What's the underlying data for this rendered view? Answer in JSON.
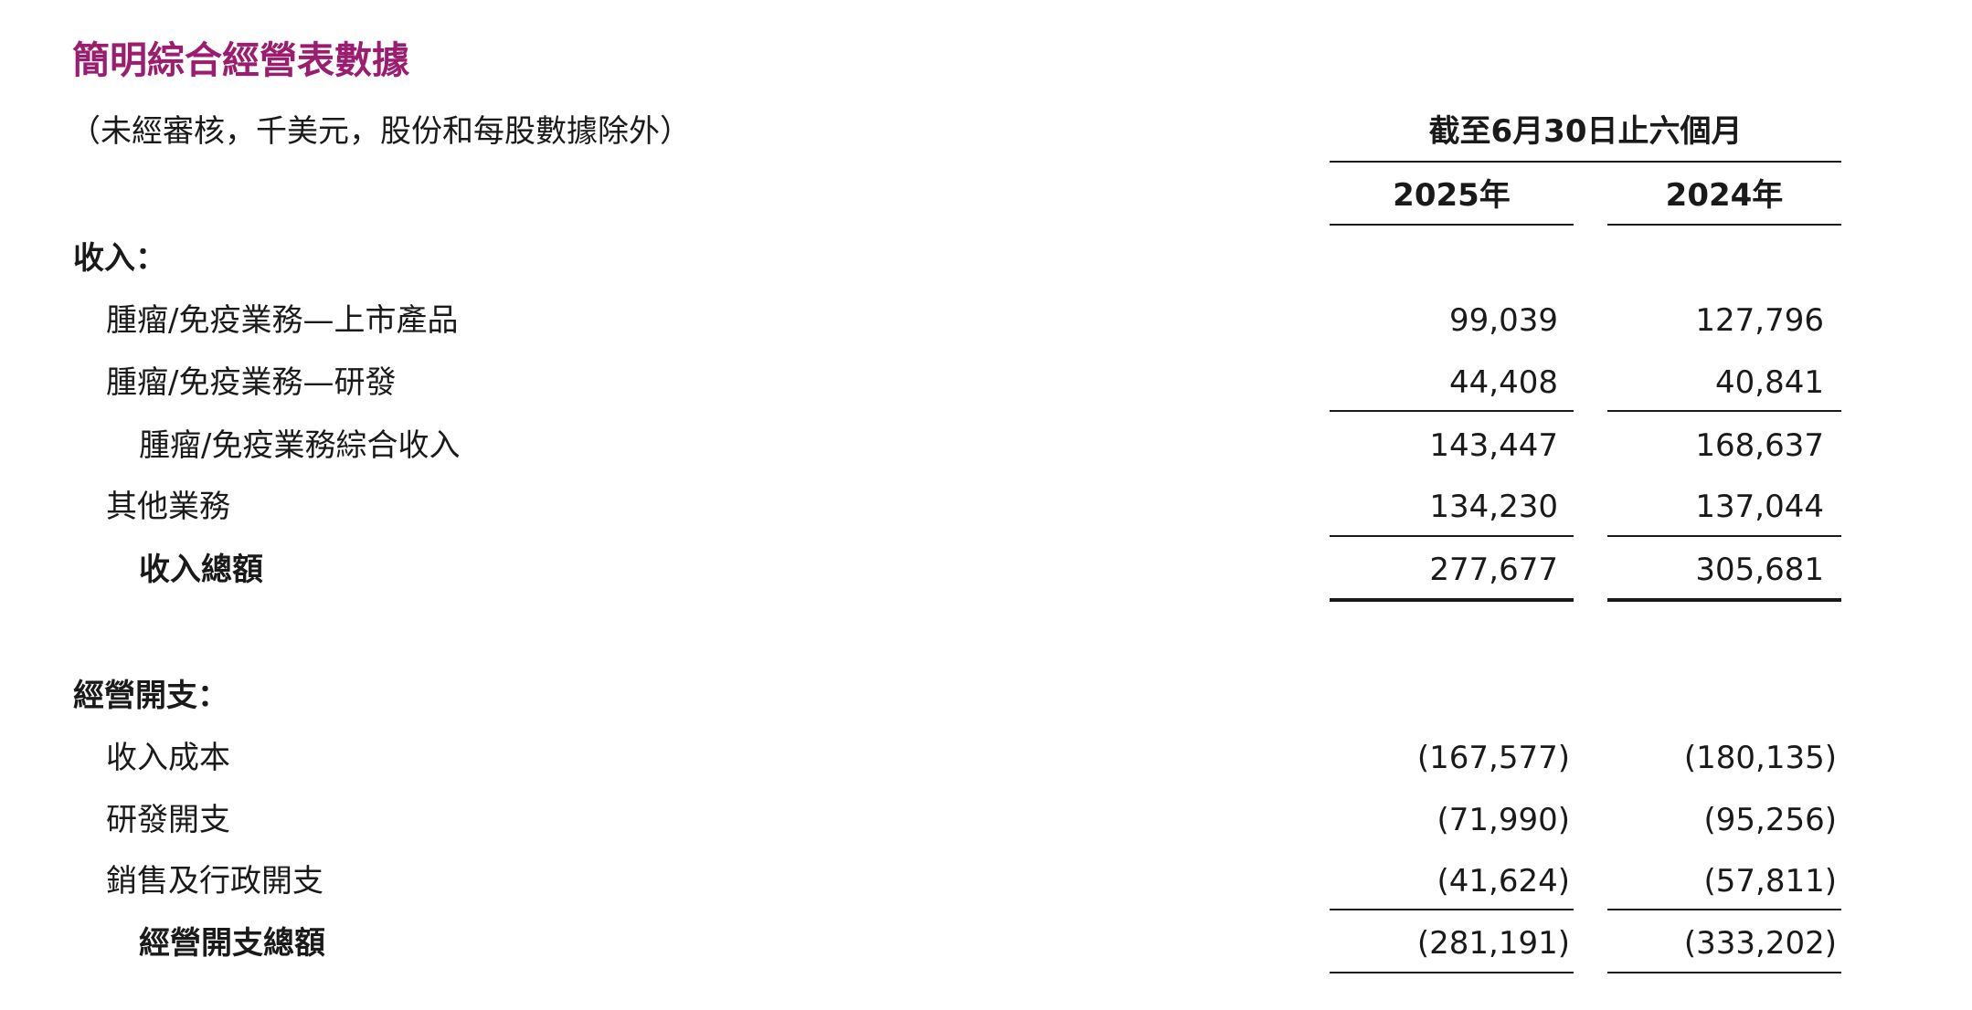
{
  "title": "簡明綜合經營表數據",
  "subtitle": "（未經審核，千美元，股份和每股數據除外）",
  "period_header": "截至6月30日止六個月",
  "years": [
    "2025年",
    "2024年"
  ],
  "rows": [
    {
      "label": "收入：",
      "v1": "",
      "v2": ""
    },
    {
      "label": "腫瘤/免疫業務—上市產品",
      "v1": "99,039",
      "v2": "127,796"
    },
    {
      "label": "腫瘤/免疫業務—研發",
      "v1": "44,408",
      "v2": "40,841"
    },
    {
      "label": "腫瘤/免疫業務綜合收入",
      "v1": "143,447",
      "v2": "168,637"
    },
    {
      "label": "其他業務",
      "v1": "134,230",
      "v2": "137,044"
    },
    {
      "label": "收入總額",
      "v1": "277,677",
      "v2": "305,681"
    },
    {
      "label": "經營開支：",
      "v1": "",
      "v2": ""
    },
    {
      "label": "收入成本",
      "v1": "(167,577)",
      "v2": "(180,135)"
    },
    {
      "label": "研發開支",
      "v1": "(71,990)",
      "v2": "(95,256)"
    },
    {
      "label": "銷售及行政開支",
      "v1": "(41,624)",
      "v2": "(57,811)"
    },
    {
      "label": "經營開支總額",
      "v1": "(281,191)",
      "v2": "(333,202)"
    }
  ],
  "colors": {
    "title": "#9b1d6f",
    "text": "#1a1a1a"
  }
}
